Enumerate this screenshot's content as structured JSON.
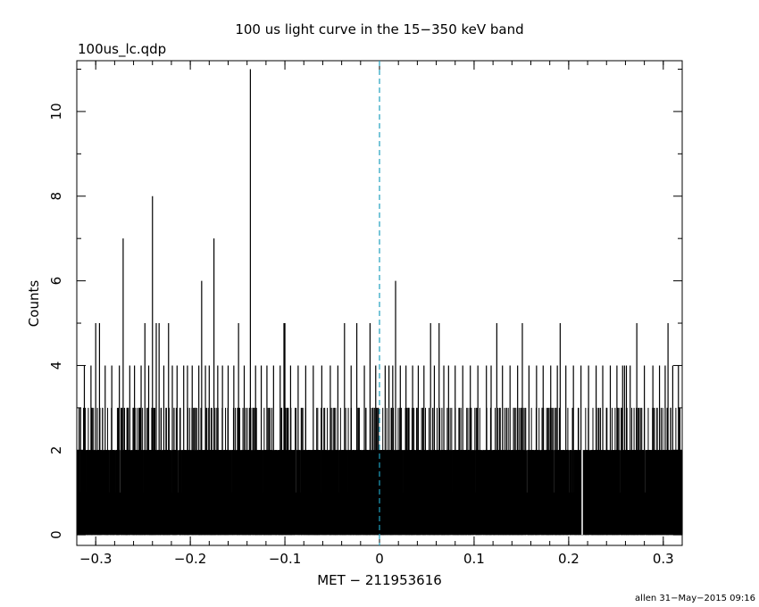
{
  "chart_data": {
    "type": "bar",
    "title": "100 us light curve in the 15−350 keV band",
    "subtitle": "100us_lc.qdp",
    "xlabel": "MET − 211953616",
    "ylabel": "Counts",
    "footer": "allen 31−May−2015 09:16",
    "xlim": [
      -0.32,
      0.32
    ],
    "ylim": [
      -0.25,
      11.2
    ],
    "bin_width": 0.0001,
    "x_ticks": [
      {
        "value": -0.3,
        "label": "−0.3"
      },
      {
        "value": -0.2,
        "label": "−0.2"
      },
      {
        "value": -0.1,
        "label": "−0.1"
      },
      {
        "value": 0,
        "label": "0"
      },
      {
        "value": 0.1,
        "label": "0.1"
      },
      {
        "value": 0.2,
        "label": "0.2"
      },
      {
        "value": 0.3,
        "label": "0.3"
      }
    ],
    "y_ticks": [
      {
        "value": 0,
        "label": "0"
      },
      {
        "value": 2,
        "label": "2"
      },
      {
        "value": 4,
        "label": "4"
      },
      {
        "value": 6,
        "label": "6"
      },
      {
        "value": 8,
        "label": "8"
      },
      {
        "value": 10,
        "label": "10"
      }
    ],
    "reference_line": {
      "x": 0,
      "color": "#1f9fbf",
      "style": "dashed"
    },
    "baseline_counts": [
      1,
      2
    ],
    "data_gaps": [
      [
        0.2125,
        0.215
      ]
    ],
    "peaks": [
      {
        "x": -0.316,
        "y": 3
      },
      {
        "x": -0.312,
        "y": 4
      },
      {
        "x": -0.305,
        "y": 4
      },
      {
        "x": -0.3,
        "y": 5
      },
      {
        "x": -0.296,
        "y": 5
      },
      {
        "x": -0.29,
        "y": 4
      },
      {
        "x": -0.283,
        "y": 4
      },
      {
        "x": -0.275,
        "y": 4
      },
      {
        "x": -0.271,
        "y": 7
      },
      {
        "x": -0.264,
        "y": 4
      },
      {
        "x": -0.259,
        "y": 4
      },
      {
        "x": -0.252,
        "y": 4
      },
      {
        "x": -0.248,
        "y": 5
      },
      {
        "x": -0.244,
        "y": 4
      },
      {
        "x": -0.24,
        "y": 8
      },
      {
        "x": -0.236,
        "y": 5
      },
      {
        "x": -0.233,
        "y": 5
      },
      {
        "x": -0.228,
        "y": 4
      },
      {
        "x": -0.223,
        "y": 5
      },
      {
        "x": -0.219,
        "y": 4
      },
      {
        "x": -0.214,
        "y": 4
      },
      {
        "x": -0.207,
        "y": 4
      },
      {
        "x": -0.203,
        "y": 4
      },
      {
        "x": -0.198,
        "y": 4
      },
      {
        "x": -0.191,
        "y": 4
      },
      {
        "x": -0.188,
        "y": 6
      },
      {
        "x": -0.184,
        "y": 4
      },
      {
        "x": -0.18,
        "y": 4
      },
      {
        "x": -0.175,
        "y": 7
      },
      {
        "x": -0.171,
        "y": 4
      },
      {
        "x": -0.166,
        "y": 4
      },
      {
        "x": -0.16,
        "y": 4
      },
      {
        "x": -0.154,
        "y": 4
      },
      {
        "x": -0.149,
        "y": 5
      },
      {
        "x": -0.143,
        "y": 4
      },
      {
        "x": -0.1365,
        "y": 11
      },
      {
        "x": -0.131,
        "y": 4
      },
      {
        "x": -0.125,
        "y": 4
      },
      {
        "x": -0.119,
        "y": 4
      },
      {
        "x": -0.112,
        "y": 4
      },
      {
        "x": -0.105,
        "y": 4
      },
      {
        "x": -0.101,
        "y": 5
      },
      {
        "x": -0.1,
        "y": 5
      },
      {
        "x": -0.094,
        "y": 4
      },
      {
        "x": -0.086,
        "y": 4
      },
      {
        "x": -0.078,
        "y": 4
      },
      {
        "x": -0.07,
        "y": 4
      },
      {
        "x": -0.061,
        "y": 4
      },
      {
        "x": -0.052,
        "y": 4
      },
      {
        "x": -0.044,
        "y": 4
      },
      {
        "x": -0.037,
        "y": 5
      },
      {
        "x": -0.03,
        "y": 4
      },
      {
        "x": -0.024,
        "y": 5
      },
      {
        "x": -0.016,
        "y": 4
      },
      {
        "x": -0.01,
        "y": 5
      },
      {
        "x": -0.004,
        "y": 4
      },
      {
        "x": 0.006,
        "y": 4
      },
      {
        "x": 0.01,
        "y": 4
      },
      {
        "x": 0.014,
        "y": 4
      },
      {
        "x": 0.017,
        "y": 6
      },
      {
        "x": 0.022,
        "y": 4
      },
      {
        "x": 0.028,
        "y": 4
      },
      {
        "x": 0.035,
        "y": 4
      },
      {
        "x": 0.041,
        "y": 4
      },
      {
        "x": 0.047,
        "y": 4
      },
      {
        "x": 0.054,
        "y": 5
      },
      {
        "x": 0.058,
        "y": 4
      },
      {
        "x": 0.063,
        "y": 5
      },
      {
        "x": 0.068,
        "y": 4
      },
      {
        "x": 0.073,
        "y": 4
      },
      {
        "x": 0.08,
        "y": 4
      },
      {
        "x": 0.088,
        "y": 4
      },
      {
        "x": 0.096,
        "y": 4
      },
      {
        "x": 0.104,
        "y": 4
      },
      {
        "x": 0.113,
        "y": 4
      },
      {
        "x": 0.118,
        "y": 4
      },
      {
        "x": 0.124,
        "y": 5
      },
      {
        "x": 0.13,
        "y": 4
      },
      {
        "x": 0.138,
        "y": 4
      },
      {
        "x": 0.146,
        "y": 4
      },
      {
        "x": 0.151,
        "y": 5
      },
      {
        "x": 0.158,
        "y": 4
      },
      {
        "x": 0.166,
        "y": 4
      },
      {
        "x": 0.173,
        "y": 4
      },
      {
        "x": 0.181,
        "y": 4
      },
      {
        "x": 0.188,
        "y": 4
      },
      {
        "x": 0.191,
        "y": 5
      },
      {
        "x": 0.197,
        "y": 4
      },
      {
        "x": 0.205,
        "y": 4
      },
      {
        "x": 0.213,
        "y": 4
      },
      {
        "x": 0.221,
        "y": 4
      },
      {
        "x": 0.229,
        "y": 4
      },
      {
        "x": 0.236,
        "y": 4
      },
      {
        "x": 0.244,
        "y": 4
      },
      {
        "x": 0.251,
        "y": 4
      },
      {
        "x": 0.257,
        "y": 4
      },
      {
        "x": 0.259,
        "y": 4
      },
      {
        "x": 0.261,
        "y": 4
      },
      {
        "x": 0.265,
        "y": 4
      },
      {
        "x": 0.272,
        "y": 5
      },
      {
        "x": 0.28,
        "y": 4
      },
      {
        "x": 0.289,
        "y": 4
      },
      {
        "x": 0.296,
        "y": 4
      },
      {
        "x": 0.302,
        "y": 4
      },
      {
        "x": 0.305,
        "y": 5
      },
      {
        "x": 0.31,
        "y": 4
      },
      {
        "x": 0.316,
        "y": 4
      }
    ]
  }
}
